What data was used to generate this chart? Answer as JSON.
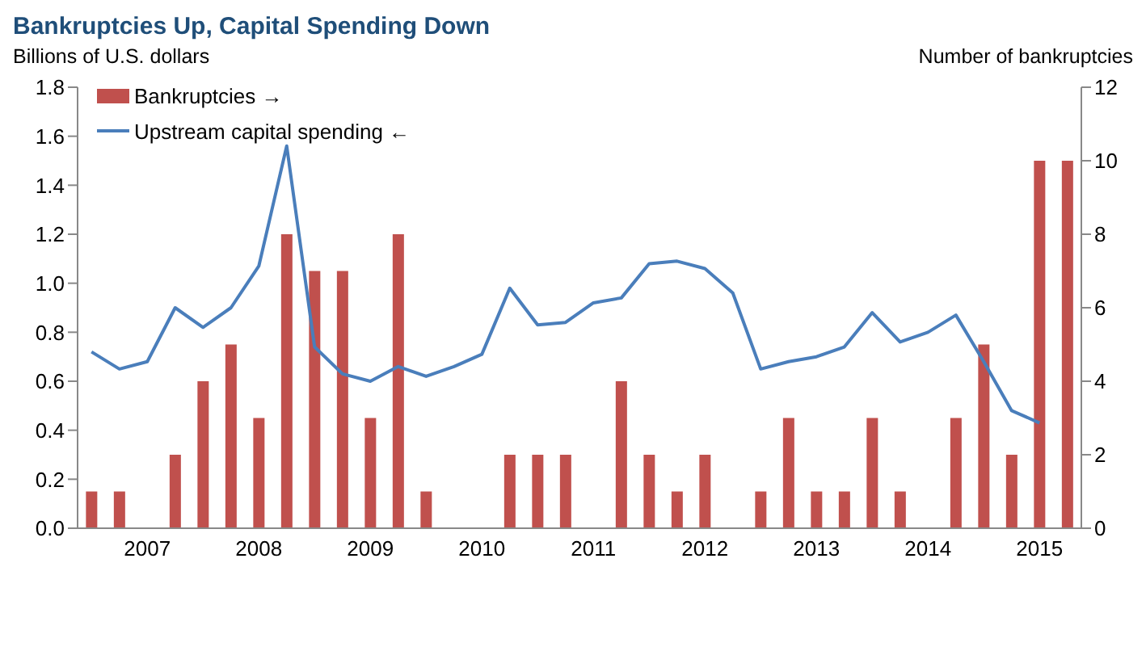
{
  "chart_data": {
    "type": "bar",
    "title": "Bankruptcies Up, Capital Spending Down",
    "ylabel": "Billions of U.S. dollars",
    "y2label": "Number of bankruptcies",
    "categories": [
      null,
      null,
      "2007",
      null,
      null,
      null,
      "2008",
      null,
      null,
      null,
      "2009",
      null,
      null,
      null,
      "2010",
      null,
      null,
      null,
      "2011",
      null,
      null,
      null,
      "2012",
      null,
      null,
      null,
      "2013",
      null,
      null,
      null,
      "2014",
      null,
      null,
      null,
      "2015",
      null
    ],
    "series": [
      {
        "name": "Bankruptcies →",
        "axis": "y2",
        "color": "#c0504d",
        "values": [
          1,
          1,
          0,
          2,
          4,
          5,
          3,
          8,
          7,
          7,
          3,
          8,
          1,
          0,
          0,
          2,
          2,
          2,
          0,
          4,
          2,
          1,
          2,
          0,
          1,
          3,
          1,
          1,
          3,
          1,
          0,
          3,
          5,
          2,
          10,
          10
        ]
      },
      {
        "name": "Upstream capital spending ←",
        "type": "line",
        "axis": "y",
        "color": "#4a7ebb",
        "values": [
          0.72,
          0.65,
          0.68,
          0.9,
          0.82,
          0.9,
          1.07,
          1.56,
          0.74,
          0.63,
          0.6,
          0.66,
          0.62,
          0.66,
          0.71,
          0.98,
          0.83,
          0.84,
          0.92,
          0.94,
          1.08,
          1.09,
          1.06,
          0.96,
          0.65,
          0.68,
          0.7,
          0.74,
          0.88,
          0.76,
          0.8,
          0.87,
          0.68,
          0.48,
          0.43,
          null
        ]
      }
    ],
    "ylim": [
      0,
      1.8
    ],
    "yticks": [
      {
        "value": 0,
        "label": "0.0"
      },
      {
        "value": 0.2,
        "label": "0.2"
      },
      {
        "value": 0.4,
        "label": "0.4"
      },
      {
        "value": 0.6,
        "label": "0.6"
      },
      {
        "value": 0.8,
        "label": "0.8"
      },
      {
        "value": 1,
        "label": "1.0"
      },
      {
        "value": 1.2,
        "label": "1.2"
      },
      {
        "value": 1.4,
        "label": "1.4"
      },
      {
        "value": 1.6,
        "label": "1.6"
      },
      {
        "value": 1.8,
        "label": "1.8"
      }
    ],
    "y2lim": [
      0,
      12
    ],
    "y2ticks": [
      0,
      2,
      4,
      6,
      8,
      10,
      12
    ],
    "legend": "top left"
  }
}
